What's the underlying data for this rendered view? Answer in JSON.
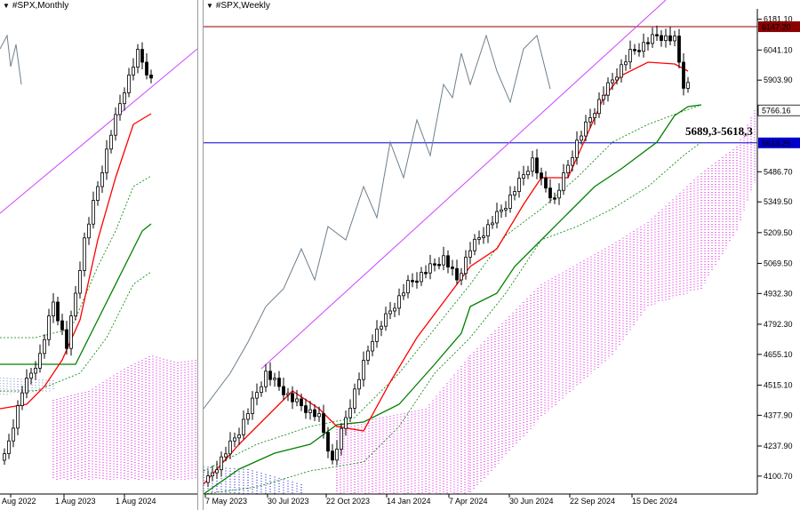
{
  "monthly": {
    "title": "#SPX,Monthly",
    "xlabels": [
      "Aug 2022",
      "1 Aug 2023",
      "1 Aug 2024"
    ]
  },
  "weekly": {
    "title": "#SPX,Weekly",
    "xlabels": [
      "7 May 2023",
      "30 Jul 2023",
      "22 Oct 2023",
      "14 Jan 2024",
      "7 Apr 2024",
      "30 Jun 2024",
      "22 Sep 2024",
      "15 Dec 2024"
    ],
    "yticks": [
      "6181.10",
      "6041.10",
      "5903.90",
      "5766.16",
      "5486.70",
      "5349.50",
      "5209.50",
      "5069.50",
      "4932.30",
      "4792.30",
      "4655.10",
      "4515.10",
      "4377.90",
      "4237.90",
      "4100.70"
    ],
    "tags": [
      {
        "text": "6147.20",
        "value": 6147.2,
        "color": "#8b0000"
      },
      {
        "text": "5766.16",
        "value": 5766.16,
        "color": "#000000"
      },
      {
        "text": "5618.25",
        "value": 5618.25,
        "color": "#0000cc"
      }
    ],
    "annotation": "5689,3-5618,3"
  },
  "colors": {
    "tenkan": "#ff0000",
    "kijun": "#008000",
    "kumo": "#e000e0",
    "trend": "#cc44ff",
    "resistance": "#8b0000",
    "support": "#0000cc",
    "chikou": "#6e7f8c"
  },
  "chart_data": [
    {
      "type": "candlestick",
      "symbol": "#SPX",
      "timeframe": "Monthly",
      "xlabels": [
        "Aug 2022",
        "1 Aug 2023",
        "1 Aug 2024"
      ],
      "indicators": [
        "Ichimoku cloud",
        "trend line"
      ]
    },
    {
      "type": "candlestick",
      "symbol": "#SPX",
      "timeframe": "Weekly",
      "ylim": [
        4080,
        6200
      ],
      "levels": [
        6147.2,
        5766.16,
        5618.25
      ],
      "annotation": "5689,3-5618,3",
      "indicators": [
        "Ichimoku cloud",
        "trend line"
      ]
    }
  ]
}
